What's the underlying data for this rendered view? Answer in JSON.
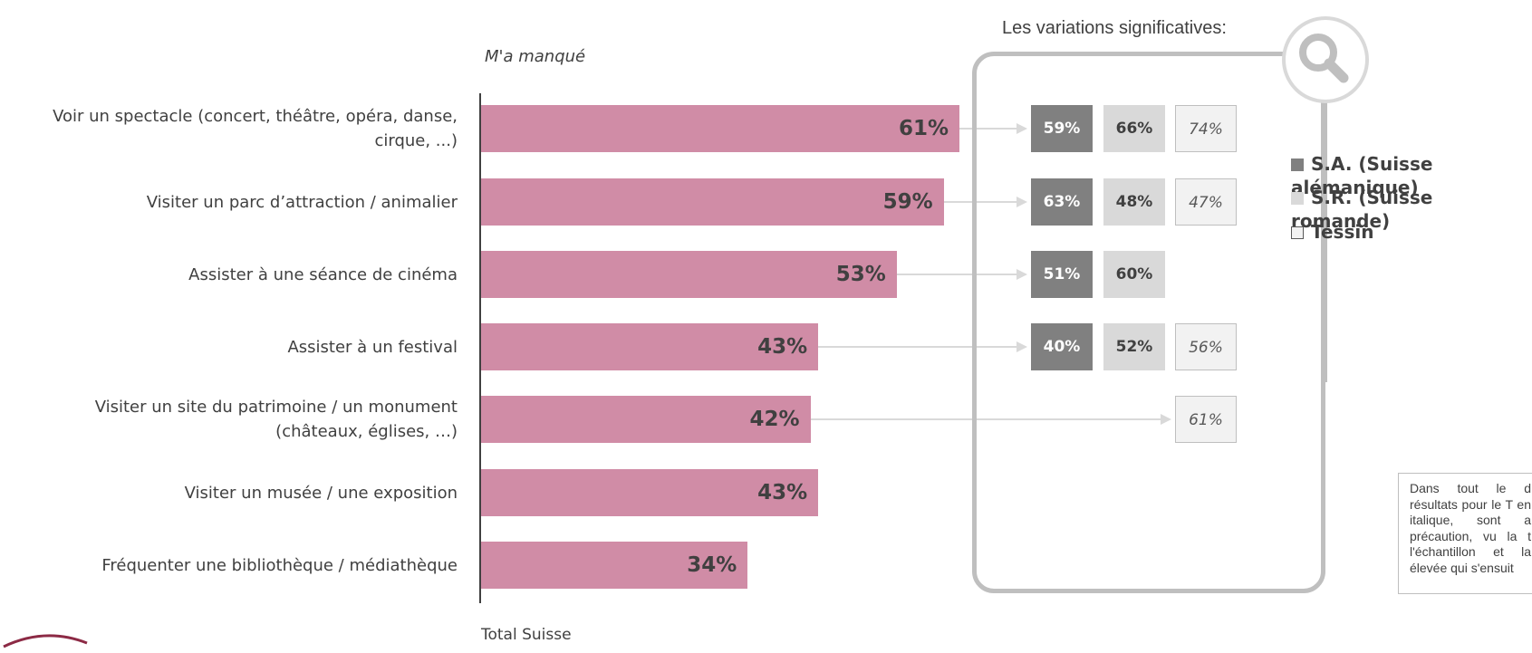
{
  "header": {
    "series_label": "M'a manqué"
  },
  "chart_data": {
    "type": "bar",
    "orientation": "horizontal",
    "categories": [
      "Voir un spectacle (concert, théâtre, opéra, danse, cirque, ...)",
      "Visiter un parc d’attraction / animalier",
      "Assister à une séance de cinéma",
      "Assister à un festival",
      "Visiter un site du patrimoine / un monument (châteaux, églises, …)",
      "Visiter un musée / une exposition",
      "Fréquenter une bibliothèque / médiathèque"
    ],
    "values": [
      61,
      59,
      53,
      43,
      42,
      43,
      34
    ],
    "value_labels": [
      "61%",
      "59%",
      "53%",
      "43%",
      "42%",
      "43%",
      "34%"
    ],
    "xlabel": "Total Suisse",
    "xlim": [
      0,
      100
    ],
    "bar_color": "#d08ca6"
  },
  "panel": {
    "title": "Les variations significatives:",
    "rows": [
      {
        "sa": "59%",
        "sr": "66%",
        "ti": "74%"
      },
      {
        "sa": "63%",
        "sr": "48%",
        "ti": "47%"
      },
      {
        "sa": "51%",
        "sr": "60%",
        "ti": null
      },
      {
        "sa": "40%",
        "sr": "52%",
        "ti": "56%"
      },
      {
        "sa": null,
        "sr": null,
        "ti": "61%"
      },
      {
        "sa": null,
        "sr": null,
        "ti": null
      },
      {
        "sa": null,
        "sr": null,
        "ti": null
      }
    ],
    "icon": "magnifier-icon"
  },
  "legend": {
    "items": [
      {
        "label": "S.A. (Suisse alémanique)",
        "color": "#808080"
      },
      {
        "label": "S.R. (Suisse romande)",
        "color": "#d9d9d9"
      },
      {
        "label": "Tessin",
        "color": "#f2f2f2"
      }
    ]
  },
  "note": {
    "text": "Dans tout le d résultats pour le T en italique, sont a précaution, vu la t l'échantillon et la élevée qui s'ensuit"
  },
  "colors": {
    "sa": "#808080",
    "sr": "#d9d9d9",
    "ti": "#f2f2f2",
    "panel_border": "#bfbfbf",
    "text": "#404040"
  }
}
